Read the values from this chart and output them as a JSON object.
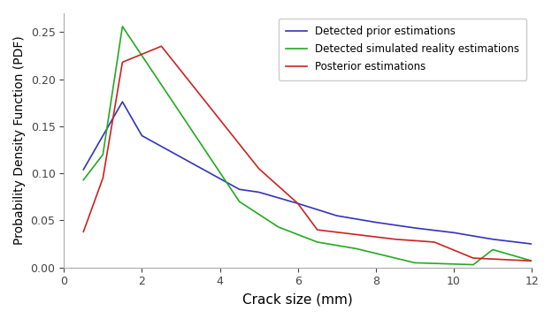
{
  "blue_x": [
    0.5,
    1.5,
    2.0,
    4.5,
    5.0,
    6.0,
    7.0,
    8.0,
    9.0,
    10.0,
    11.0,
    12.0
  ],
  "blue_y": [
    0.104,
    0.176,
    0.14,
    0.083,
    0.08,
    0.068,
    0.055,
    0.048,
    0.042,
    0.037,
    0.03,
    0.025
  ],
  "green_x": [
    0.5,
    1.0,
    1.5,
    4.5,
    5.5,
    6.5,
    7.5,
    9.0,
    10.5,
    11.0,
    12.0
  ],
  "green_y": [
    0.093,
    0.12,
    0.256,
    0.07,
    0.043,
    0.027,
    0.02,
    0.005,
    0.003,
    0.019,
    0.007
  ],
  "red_x": [
    0.5,
    1.0,
    1.5,
    2.5,
    5.0,
    6.0,
    6.5,
    7.5,
    8.5,
    9.5,
    10.5,
    11.5,
    12.0
  ],
  "red_y": [
    0.038,
    0.095,
    0.218,
    0.235,
    0.105,
    0.068,
    0.04,
    0.035,
    0.03,
    0.027,
    0.01,
    0.008,
    0.007
  ],
  "blue_label": "Detected prior estimations",
  "green_label": "Detected simulated reality estimations",
  "red_label": "Posterior estimations",
  "blue_color": "#3333bb",
  "green_color": "#22aa22",
  "red_color": "#cc2222",
  "xlabel": "Crack size (mm)",
  "ylabel": "Probability Density Function (PDF)",
  "xlim": [
    0,
    12
  ],
  "ylim": [
    0.0,
    0.27
  ],
  "xticks": [
    0,
    2,
    4,
    6,
    8,
    10,
    12
  ],
  "yticks": [
    0.0,
    0.05,
    0.1,
    0.15,
    0.2,
    0.25
  ],
  "legend_fontsize": 8.5,
  "xlabel_fontsize": 11,
  "ylabel_fontsize": 10,
  "tick_labelsize": 9,
  "linewidth": 1.2,
  "spine_color": "#aaaaaa",
  "tick_color": "#444444"
}
